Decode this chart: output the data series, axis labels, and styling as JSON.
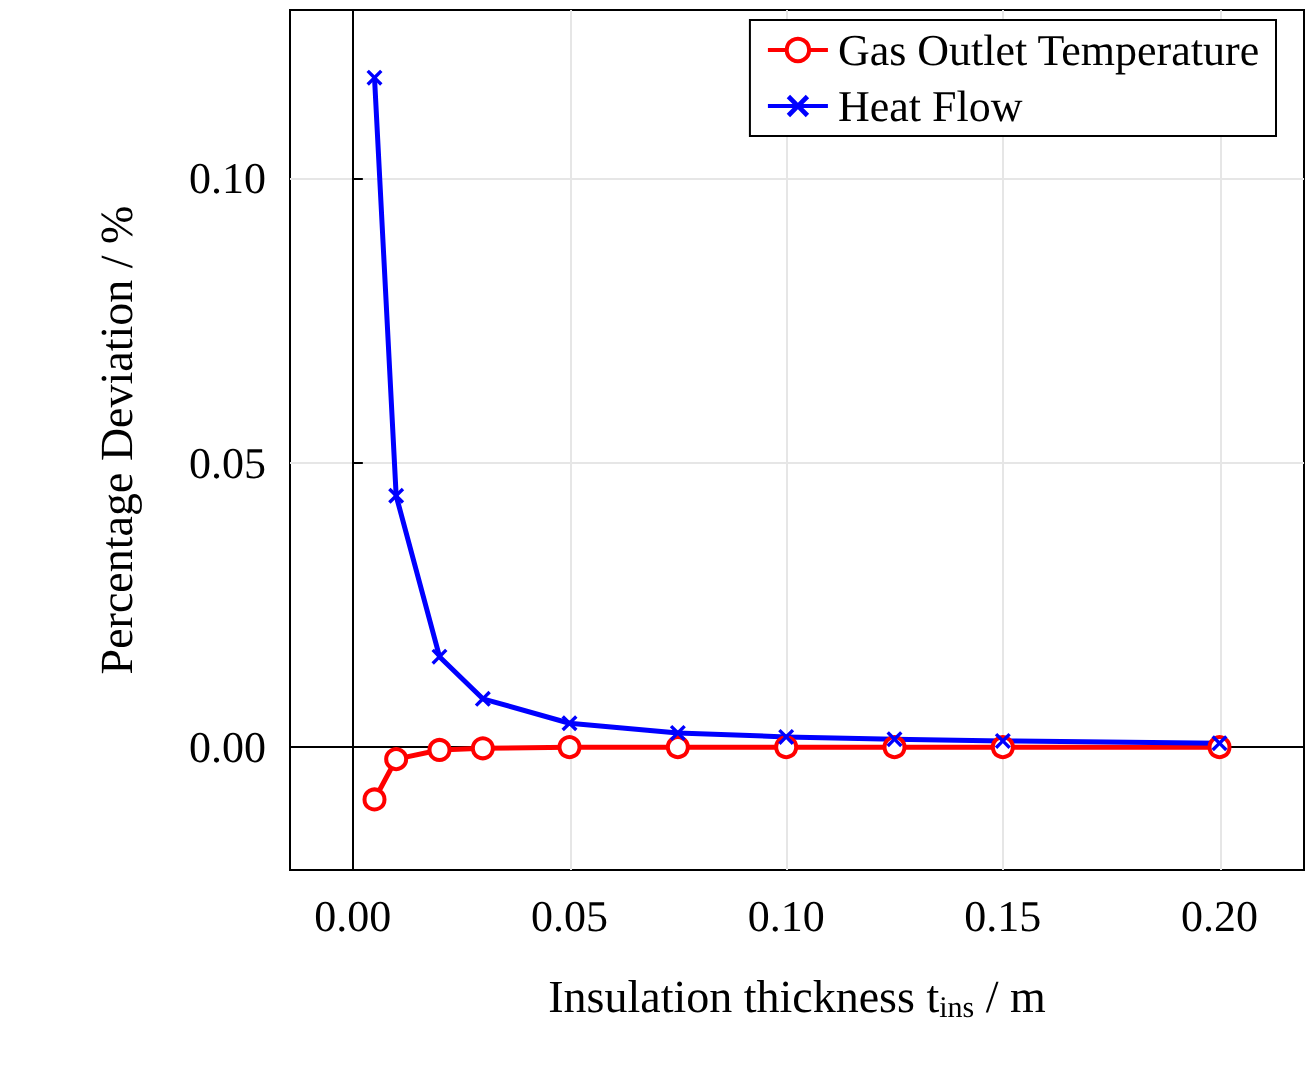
{
  "chart_data": {
    "type": "line",
    "xlabel": "Insulation thickness t$_{ins}$ / m",
    "ylabel": "Percentage Deviation / %",
    "xlim": [
      -0.0145,
      0.2195
    ],
    "ylim": [
      -0.0216,
      0.1296
    ],
    "xticks": [
      {
        "value": 0,
        "label": "0.00"
      },
      {
        "value": 0.05,
        "label": "0.05"
      },
      {
        "value": 0.1,
        "label": "0.10"
      },
      {
        "value": 0.15,
        "label": "0.15"
      },
      {
        "value": 0.2,
        "label": "0.20"
      }
    ],
    "yticks": [
      {
        "value": 0,
        "label": "0.00"
      },
      {
        "value": 0.05,
        "label": "0.05"
      },
      {
        "value": 0.1,
        "label": "0.10"
      }
    ],
    "grid": true,
    "legend": "top right",
    "line_style": "solid",
    "x": [
      0.005,
      0.01,
      0.02,
      0.03,
      0.05,
      0.075,
      0.1,
      0.125,
      0.15,
      0.2
    ],
    "series": [
      {
        "name": "Gas Outlet Temperature",
        "color": "#ff0000",
        "marker": "circle",
        "values": [
          -0.0092,
          -0.0021,
          -0.0005,
          -0.0002,
          0,
          0,
          0,
          0,
          0,
          0
        ]
      },
      {
        "name": "Heat Flow",
        "color": "#0000ff",
        "marker": "cross",
        "values": [
          0.1177,
          0.0442,
          0.0159,
          0.0085,
          0.0042,
          0.0025,
          0.0018,
          0.0014,
          0.0011,
          0.0007
        ]
      }
    ]
  }
}
